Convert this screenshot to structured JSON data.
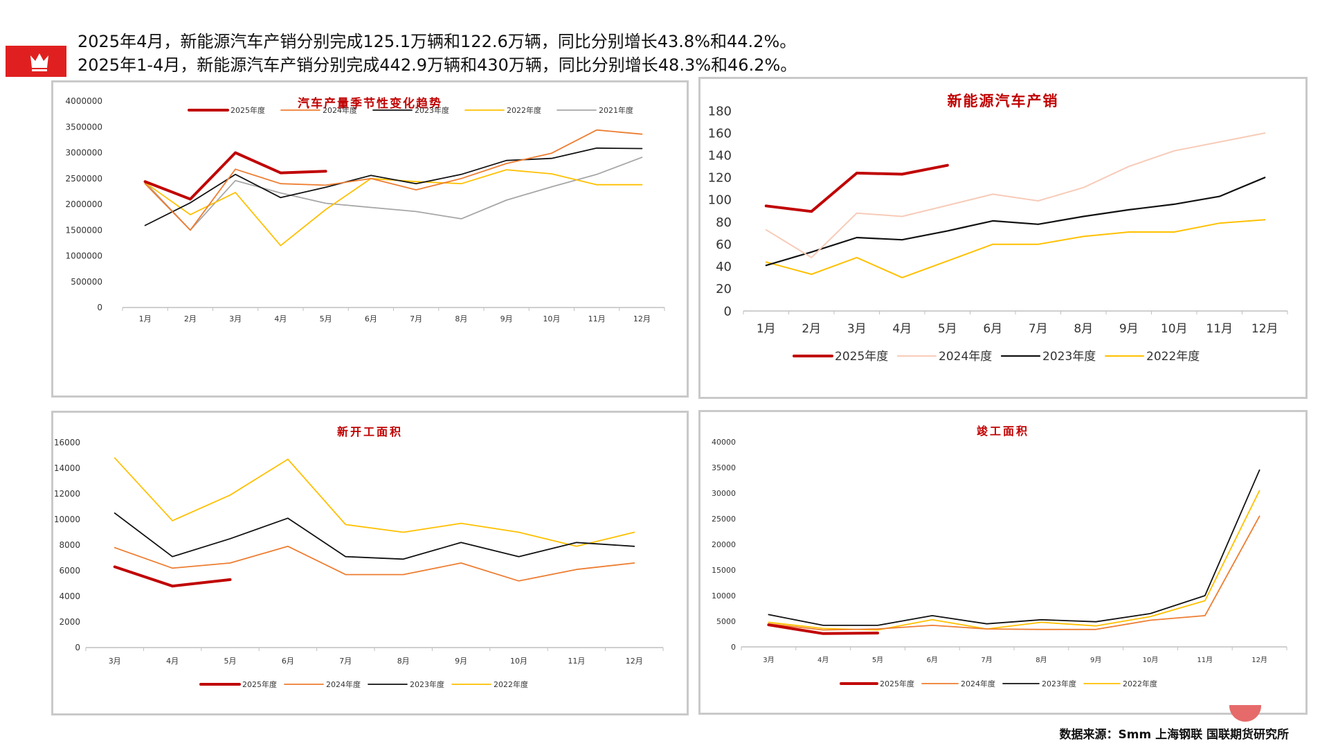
{
  "header": {
    "line1": "2025年4月，新能源汽车产销分别完成125.1万辆和122.6万辆，同比分别增长43.8%和44.2%。",
    "line2": "2025年1-4月，新能源汽车产销分别完成442.9万辆和430万辆，同比分别增长48.3%和46.2%。",
    "icon": "crown-icon"
  },
  "source": "数据来源：Smm 上海钢联 国联期货研究所",
  "colors": {
    "accent": "#e02020",
    "title_red": "#c00000"
  },
  "chart_data": [
    {
      "id": "auto-production",
      "type": "line",
      "title": "汽车产量季节性变化趋势",
      "categories": [
        "1月",
        "2月",
        "3月",
        "4月",
        "5月",
        "6月",
        "7月",
        "8月",
        "9月",
        "10月",
        "11月",
        "12月"
      ],
      "ylim": [
        0,
        4000000
      ],
      "yticks": [
        0,
        500000,
        1000000,
        1500000,
        2000000,
        2500000,
        3000000,
        3500000,
        4000000
      ],
      "legend": "top",
      "series": [
        {
          "name": "2025年度",
          "color": "#c00000",
          "width": 4,
          "values": [
            2440000,
            2100000,
            3000000,
            2610000,
            2640000,
            null,
            null,
            null,
            null,
            null,
            null,
            null
          ]
        },
        {
          "name": "2024年度",
          "color": "#ed7d31",
          "width": 1.8,
          "values": [
            2400000,
            1500000,
            2680000,
            2400000,
            2370000,
            2500000,
            2280000,
            2500000,
            2790000,
            2990000,
            3440000,
            3360000
          ]
        },
        {
          "name": "2023年度",
          "color": "#111111",
          "width": 1.8,
          "values": [
            1590000,
            2030000,
            2580000,
            2130000,
            2330000,
            2560000,
            2400000,
            2580000,
            2850000,
            2890000,
            3090000,
            3080000
          ]
        },
        {
          "name": "2022年度",
          "color": "#ffc000",
          "width": 1.8,
          "values": [
            2420000,
            1800000,
            2230000,
            1200000,
            1900000,
            2500000,
            2440000,
            2400000,
            2670000,
            2590000,
            2380000,
            2380000
          ]
        },
        {
          "name": "2021年度",
          "color": "#a6a6a6",
          "width": 1.8,
          "values": [
            2430000,
            1500000,
            2460000,
            2220000,
            2020000,
            1940000,
            1860000,
            1720000,
            2080000,
            2340000,
            2580000,
            2910000
          ]
        }
      ]
    },
    {
      "id": "nev-production-sales",
      "type": "line",
      "title": "新能源汽车产销",
      "categories": [
        "1月",
        "2月",
        "3月",
        "4月",
        "5月",
        "6月",
        "7月",
        "8月",
        "9月",
        "10月",
        "11月",
        "12月"
      ],
      "ylim": [
        0,
        180
      ],
      "yticks": [
        0,
        20,
        40,
        60,
        80,
        100,
        120,
        140,
        160,
        180
      ],
      "legend": "bottom",
      "series": [
        {
          "name": "2025年度",
          "color": "#c00000",
          "width": 4,
          "values": [
            94.5,
            89.5,
            124,
            123,
            131,
            null,
            null,
            null,
            null,
            null,
            null,
            null
          ]
        },
        {
          "name": "2024年度",
          "color": "#f7cbb8",
          "width": 2,
          "values": [
            73,
            48,
            88,
            85,
            95,
            105,
            99,
            111,
            130,
            144,
            152,
            160
          ]
        },
        {
          "name": "2023年度",
          "color": "#111111",
          "width": 2.2,
          "values": [
            41,
            53,
            66,
            64,
            72,
            81,
            78,
            85,
            91,
            96,
            103,
            120
          ]
        },
        {
          "name": "2022年度",
          "color": "#ffc000",
          "width": 2,
          "values": [
            44,
            33,
            48,
            30,
            45,
            60,
            60,
            67,
            71,
            71,
            79,
            82
          ]
        }
      ]
    },
    {
      "id": "new-construction-area",
      "type": "line",
      "title": "新开工面积",
      "categories": [
        "3月",
        "4月",
        "5月",
        "6月",
        "7月",
        "8月",
        "9月",
        "10月",
        "11月",
        "12月"
      ],
      "ylim": [
        0,
        16000
      ],
      "yticks": [
        0,
        2000,
        4000,
        6000,
        8000,
        10000,
        12000,
        14000,
        16000
      ],
      "legend": "bottom",
      "series": [
        {
          "name": "2025年度",
          "color": "#c00000",
          "width": 4,
          "values": [
            6300,
            4800,
            5300,
            null,
            null,
            null,
            null,
            null,
            null,
            null
          ]
        },
        {
          "name": "2024年度",
          "color": "#ed7d31",
          "width": 1.8,
          "values": [
            7800,
            6200,
            6600,
            7900,
            5700,
            5700,
            6600,
            5200,
            6100,
            6600
          ]
        },
        {
          "name": "2023年度",
          "color": "#111111",
          "width": 1.8,
          "values": [
            10500,
            7100,
            8500,
            10100,
            7100,
            6900,
            8200,
            7100,
            8200,
            7900
          ]
        },
        {
          "name": "2022年度",
          "color": "#ffc000",
          "width": 1.8,
          "values": [
            14800,
            9900,
            11900,
            14700,
            9600,
            9000,
            9700,
            9000,
            7900,
            9000
          ]
        }
      ]
    },
    {
      "id": "completion-area",
      "type": "line",
      "title": "竣工面积",
      "categories": [
        "3月",
        "4月",
        "5月",
        "6月",
        "7月",
        "8月",
        "9月",
        "10月",
        "11月",
        "12月"
      ],
      "ylim": [
        0,
        40000
      ],
      "yticks": [
        0,
        5000,
        10000,
        15000,
        20000,
        25000,
        30000,
        35000,
        40000
      ],
      "legend": "bottom",
      "series": [
        {
          "name": "2025年度",
          "color": "#c00000",
          "width": 4,
          "values": [
            4300,
            2600,
            2700,
            null,
            null,
            null,
            null,
            null,
            null,
            null
          ]
        },
        {
          "name": "2024年度",
          "color": "#ed7d31",
          "width": 1.8,
          "values": [
            4500,
            3300,
            3500,
            4200,
            3500,
            3400,
            3400,
            5200,
            6100,
            25500
          ]
        },
        {
          "name": "2023年度",
          "color": "#111111",
          "width": 1.8,
          "values": [
            6300,
            4200,
            4200,
            6100,
            4500,
            5300,
            4900,
            6500,
            10000,
            34500
          ]
        },
        {
          "name": "2022年度",
          "color": "#ffc000",
          "width": 1.8,
          "values": [
            4800,
            3600,
            3300,
            5300,
            3500,
            4800,
            4100,
            5900,
            9000,
            30500
          ]
        }
      ]
    }
  ]
}
